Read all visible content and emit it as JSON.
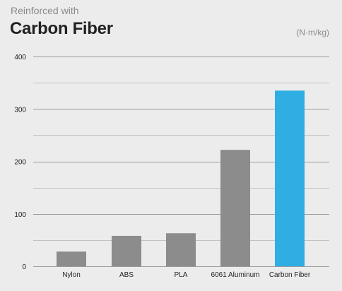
{
  "header": {
    "subtitle": "Reinforced with",
    "title": "Carbon Fiber",
    "unit": "(N·m/kg)"
  },
  "colors": {
    "background": "#ececec",
    "bar": "#8c8c8c",
    "highlight": "#2eaee3",
    "grid": "#9c9c9c",
    "label": "#222222"
  },
  "chart_data": {
    "type": "bar",
    "title": "Carbon Fiber",
    "subtitle": "Reinforced with",
    "unit": "(N·m/kg)",
    "xlabel": "",
    "ylabel": "",
    "categories": [
      "Nylon",
      "ABS",
      "PLA",
      "6061 Aluminum",
      "Carbon Fiber"
    ],
    "values": [
      28,
      58,
      63,
      222,
      335
    ],
    "highlight": "Carbon Fiber",
    "ylim": [
      0,
      400
    ],
    "yticks": [
      0,
      100,
      200,
      300,
      400
    ],
    "grid": true,
    "legend": "none"
  }
}
